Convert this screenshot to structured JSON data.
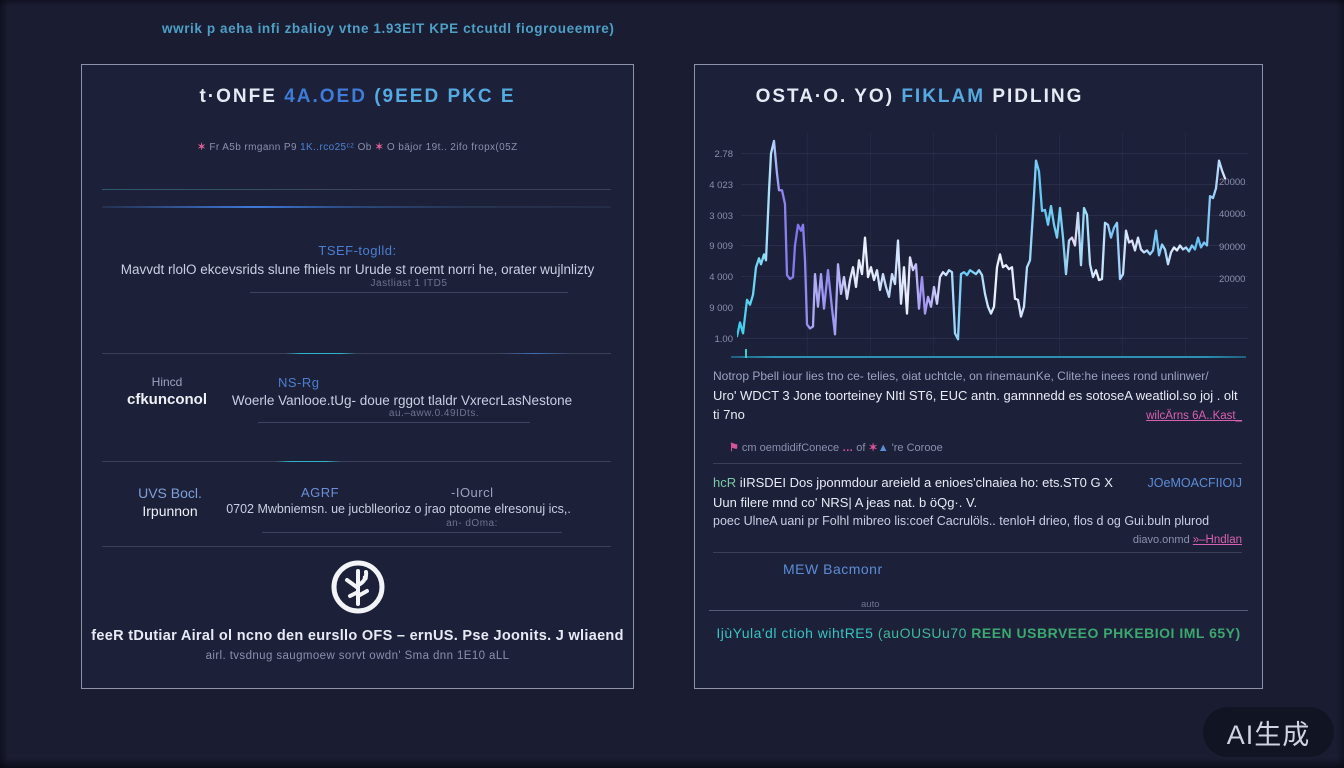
{
  "page": {
    "top_caption": "wwrik p aeha infi zbalioy vtne 1.93EIT KPE ctcutdl fiogroueemre)",
    "watermark": "AI生成"
  },
  "left_panel": {
    "title_part1": "t·ONFE ",
    "title_part2": "4A.OED ",
    "title_part3": "(9EED PKC E",
    "caption": {
      "seg1": "✶ ",
      "seg2": "Fr A5b rmgann P9 ",
      "seg3": "1K..rco25ᶜᶻ ",
      "seg4": "Ob ",
      "seg5": "✶",
      "seg6": " O bäjor 19t.. 2ifo fropx(05Z"
    },
    "section1": {
      "heading": "TSEF-toglld:",
      "body": "Mavvdt rlolO ekcevsrids  slune fhiels nr Urude st roemt norri he, orater wujlnlizty",
      "note": "Jastliast 1 ITD5"
    },
    "section2": {
      "label_top": "Hincd",
      "label_bottom": "cfkunconol",
      "heading": "NS-Rg",
      "body": "Woerle Vanlooe.tUg- doue rggot tlaldr  VxrecrLasNestone",
      "note": "au.–aww.0.49IDts."
    },
    "section3": {
      "label_top": "UVS Bocl.",
      "label_bottom": "Irpunnon",
      "heading": "AGRF",
      "heading2": "-IOurcl",
      "body": "0702 Mwbniemsn. ue jucblleorioz o jrao ptoome  elresonuj ics,.",
      "note": "an- dOma:"
    },
    "footer_line1": "feeR tDutiar Airal ol ncno den eursllo OFS – ernUS. Pse Joonits. J wliaend",
    "footer_line2": "airl. tvsdnug saugmoew sorvt owdn' Sma dnn 1E10 aLL"
  },
  "right_panel": {
    "title_part1": "OSTA·O. YO) ",
    "title_part2": "FIKLAM ",
    "title_part3": "PIDLING",
    "para1_line1": "Notrop Pbell iour lies tno ce- telies, oiat uchtcle, on rinemaunKe, Clite:he inees rond unlinwer/",
    "para1_line2": "Uro' WDCT 3  Jone toorteiney NItl ST6, EUC antn. gamnnedd es sotoseA  weatliol.so joj . olt",
    "para1_line3": "ti 7no",
    "para1_link": "wilcÄrns 6A..Kast_",
    "legend": {
      "icon1": "⚑",
      "text1": "  cm oemdidifConece  ",
      "dots": "… ",
      "text2": "of ",
      "icon2": "✶",
      "icon3": "▲",
      "text3": " 're Corooe"
    },
    "para2_word1": "hcR",
    "para2_line1": " iIRSDEI Dos jponmdour areield a enioes'clnaiea ho: ets.ST0 G X",
    "para2_link1": "JOeMOACFIIOIJ",
    "para2_line2": "Uun filere mnd co' NRS| A  jeas nat.  b öQg·. V.",
    "para2_line3": "poec UlneA uani pr Folhl mibreo lis:coef Cacrulöls..  tenloH drieo, flos d og Gui.buln plurod",
    "para2_note": "diavo.onmd ",
    "para2_link2": "»–Hndlan",
    "subhead": "MEW Bacmonr",
    "small_note": "auto",
    "footer_part1": "IjùYula'dl ctioh wihtRE5  ",
    "footer_part2": "(auOUSUu70 ",
    "footer_part3": "REEN USBRVEEO PHKEBIOI IML 65Y)"
  },
  "chart_data": {
    "type": "line",
    "title": "OSTA·O. YO) FIKLAM PIDLING",
    "xlabel": "",
    "ylabel": "",
    "grid": true,
    "legend_position": "none",
    "y_ticks_left": [
      "2.78",
      "4 023",
      "3 003",
      "9 009",
      "4 000",
      "9 000",
      "1.00"
    ],
    "y_ticks_right": [
      "20000",
      "40000",
      "90000",
      "20000"
    ],
    "line_color_theme": [
      "#35cdea",
      "#7d74ee",
      "#eef1ff"
    ],
    "gradient_stops": [
      [
        0,
        "#35cdea"
      ],
      [
        0.05,
        "#7fd9f6"
      ],
      [
        0.07,
        "#b9e4fb"
      ],
      [
        0.09,
        "#8f86f0"
      ],
      [
        0.13,
        "#7d74ee"
      ],
      [
        0.16,
        "#b3aef6"
      ],
      [
        0.19,
        "#8f86f0"
      ],
      [
        0.23,
        "#dfe3fb"
      ],
      [
        0.27,
        "#eef1ff"
      ],
      [
        0.31,
        "#bcd7fa"
      ],
      [
        0.35,
        "#eef1ff"
      ],
      [
        0.38,
        "#9a8cf0"
      ],
      [
        0.42,
        "#e0e6ff"
      ],
      [
        0.47,
        "#5fc8f4"
      ],
      [
        0.53,
        "#eef1ff"
      ],
      [
        0.58,
        "#dfe6ff"
      ],
      [
        0.62,
        "#5fc8f4"
      ],
      [
        0.67,
        "#7fd0f2"
      ],
      [
        0.69,
        "#eed9f4"
      ],
      [
        0.71,
        "#8fd8f5"
      ],
      [
        0.74,
        "#eef1ff"
      ],
      [
        0.77,
        "#6fc3f3"
      ],
      [
        0.8,
        "#dfe6ff"
      ],
      [
        0.83,
        "#cfe0fb"
      ],
      [
        0.86,
        "#6fc3f3"
      ],
      [
        0.9,
        "#eef1ff"
      ],
      [
        0.94,
        "#5fbef2"
      ],
      [
        0.97,
        "#8ac8f5"
      ],
      [
        1,
        "#d8e8ff"
      ]
    ],
    "points": [
      [
        0,
        210
      ],
      [
        3,
        196
      ],
      [
        6,
        207
      ],
      [
        10,
        173
      ],
      [
        13,
        178
      ],
      [
        16,
        168
      ],
      [
        19,
        140
      ],
      [
        22,
        131
      ],
      [
        24,
        137
      ],
      [
        27,
        127
      ],
      [
        29,
        133
      ],
      [
        32,
        63
      ],
      [
        34,
        25
      ],
      [
        37,
        12
      ],
      [
        40,
        45
      ],
      [
        42,
        62
      ],
      [
        45,
        62
      ],
      [
        48,
        76
      ],
      [
        50,
        148
      ],
      [
        53,
        152
      ],
      [
        56,
        150
      ],
      [
        58,
        118
      ],
      [
        61,
        97
      ],
      [
        64,
        103
      ],
      [
        66,
        97
      ],
      [
        68,
        133
      ],
      [
        70,
        198
      ],
      [
        73,
        202
      ],
      [
        76,
        200
      ],
      [
        78,
        147
      ],
      [
        81,
        180
      ],
      [
        84,
        147
      ],
      [
        87,
        182
      ],
      [
        91,
        143
      ],
      [
        95,
        182
      ],
      [
        98,
        208
      ],
      [
        101,
        137
      ],
      [
        104,
        167
      ],
      [
        107,
        150
      ],
      [
        110,
        172
      ],
      [
        113,
        153
      ],
      [
        116,
        140
      ],
      [
        119,
        160
      ],
      [
        122,
        133
      ],
      [
        125,
        147
      ],
      [
        128,
        110
      ],
      [
        131,
        150
      ],
      [
        134,
        140
      ],
      [
        137,
        153
      ],
      [
        140,
        143
      ],
      [
        143,
        163
      ],
      [
        146,
        147
      ],
      [
        149,
        160
      ],
      [
        152,
        170
      ],
      [
        155,
        147
      ],
      [
        158,
        157
      ],
      [
        161,
        113
      ],
      [
        164,
        177
      ],
      [
        167,
        140
      ],
      [
        170,
        187
      ],
      [
        173,
        130
      ],
      [
        176,
        143
      ],
      [
        179,
        137
      ],
      [
        182,
        182
      ],
      [
        185,
        150
      ],
      [
        188,
        187
      ],
      [
        191,
        170
      ],
      [
        194,
        180
      ],
      [
        197,
        160
      ],
      [
        200,
        177
      ],
      [
        203,
        150
      ],
      [
        206,
        145
      ],
      [
        209,
        148
      ],
      [
        212,
        143
      ],
      [
        215,
        145
      ],
      [
        218,
        207
      ],
      [
        221,
        213
      ],
      [
        224,
        147
      ],
      [
        227,
        145
      ],
      [
        230,
        148
      ],
      [
        233,
        143
      ],
      [
        236,
        145
      ],
      [
        239,
        147
      ],
      [
        242,
        143
      ],
      [
        245,
        148
      ],
      [
        248,
        167
      ],
      [
        251,
        180
      ],
      [
        254,
        187
      ],
      [
        257,
        180
      ],
      [
        260,
        140
      ],
      [
        263,
        127
      ],
      [
        266,
        140
      ],
      [
        269,
        138
      ],
      [
        272,
        142
      ],
      [
        275,
        140
      ],
      [
        278,
        172
      ],
      [
        281,
        173
      ],
      [
        284,
        190
      ],
      [
        287,
        180
      ],
      [
        290,
        140
      ],
      [
        293,
        133
      ],
      [
        296,
        85
      ],
      [
        299,
        32
      ],
      [
        302,
        43
      ],
      [
        305,
        83
      ],
      [
        308,
        82
      ],
      [
        311,
        97
      ],
      [
        314,
        78
      ],
      [
        317,
        97
      ],
      [
        320,
        110
      ],
      [
        323,
        80
      ],
      [
        326,
        110
      ],
      [
        329,
        147
      ],
      [
        332,
        113
      ],
      [
        335,
        110
      ],
      [
        338,
        118
      ],
      [
        341,
        85
      ],
      [
        344,
        138
      ],
      [
        347,
        80
      ],
      [
        350,
        87
      ],
      [
        353,
        137
      ],
      [
        356,
        150
      ],
      [
        359,
        143
      ],
      [
        362,
        153
      ],
      [
        365,
        152
      ],
      [
        368,
        95
      ],
      [
        371,
        97
      ],
      [
        374,
        110
      ],
      [
        377,
        100
      ],
      [
        380,
        95
      ],
      [
        383,
        152
      ],
      [
        386,
        147
      ],
      [
        389,
        103
      ],
      [
        392,
        115
      ],
      [
        395,
        113
      ],
      [
        398,
        123
      ],
      [
        401,
        110
      ],
      [
        404,
        122
      ],
      [
        407,
        125
      ],
      [
        410,
        123
      ],
      [
        413,
        127
      ],
      [
        416,
        123
      ],
      [
        419,
        103
      ],
      [
        422,
        128
      ],
      [
        425,
        117
      ],
      [
        428,
        122
      ],
      [
        431,
        137
      ],
      [
        434,
        125
      ],
      [
        437,
        120
      ],
      [
        440,
        123
      ],
      [
        443,
        118
      ],
      [
        446,
        122
      ],
      [
        449,
        120
      ],
      [
        452,
        124
      ],
      [
        455,
        118
      ],
      [
        458,
        122
      ],
      [
        461,
        110
      ],
      [
        464,
        120
      ],
      [
        467,
        115
      ],
      [
        470,
        118
      ],
      [
        473,
        68
      ],
      [
        476,
        70
      ],
      [
        479,
        60
      ],
      [
        482,
        32
      ],
      [
        485,
        42
      ],
      [
        488,
        50
      ]
    ]
  }
}
